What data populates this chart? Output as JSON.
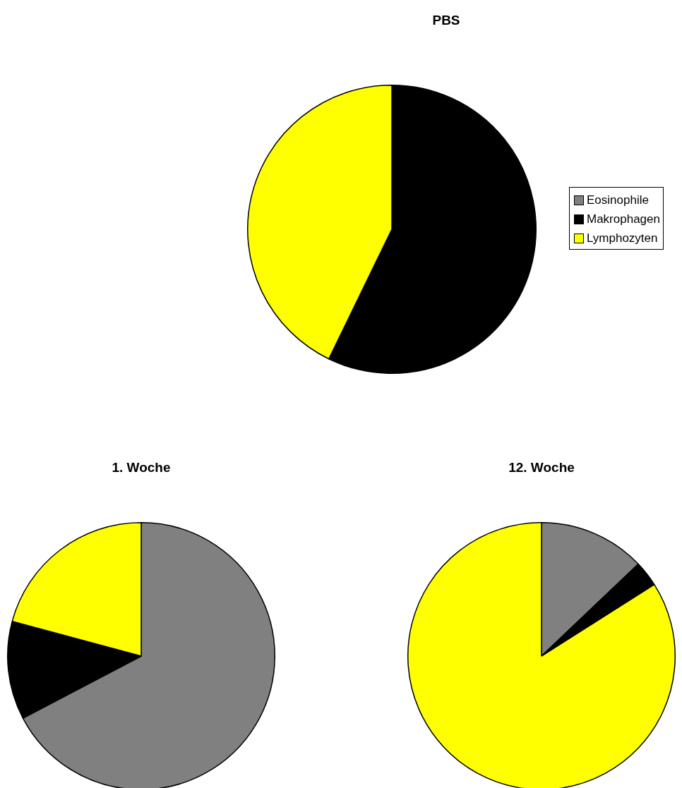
{
  "chart_data": [
    {
      "type": "pie",
      "title": "PBS",
      "categories": [
        "Eosinophile",
        "Makrophagen",
        "Lymphozyten"
      ],
      "values": [
        0,
        57.2,
        42.8
      ],
      "colors": [
        "#808080",
        "#000000",
        "#ffff00"
      ],
      "legend": "right"
    },
    {
      "type": "pie",
      "title": "1. Woche",
      "categories": [
        null,
        null,
        null
      ],
      "values": [
        67.3,
        11.9,
        20.8
      ],
      "colors": [
        "#808080",
        "#000000",
        "#ffff00"
      ]
    },
    {
      "type": "pie",
      "title": "12. Woche",
      "categories": [
        null,
        null,
        null
      ],
      "values": [
        12.9,
        3.1,
        84.0
      ],
      "colors": [
        "#808080",
        "#000000",
        "#ffff00"
      ]
    }
  ]
}
